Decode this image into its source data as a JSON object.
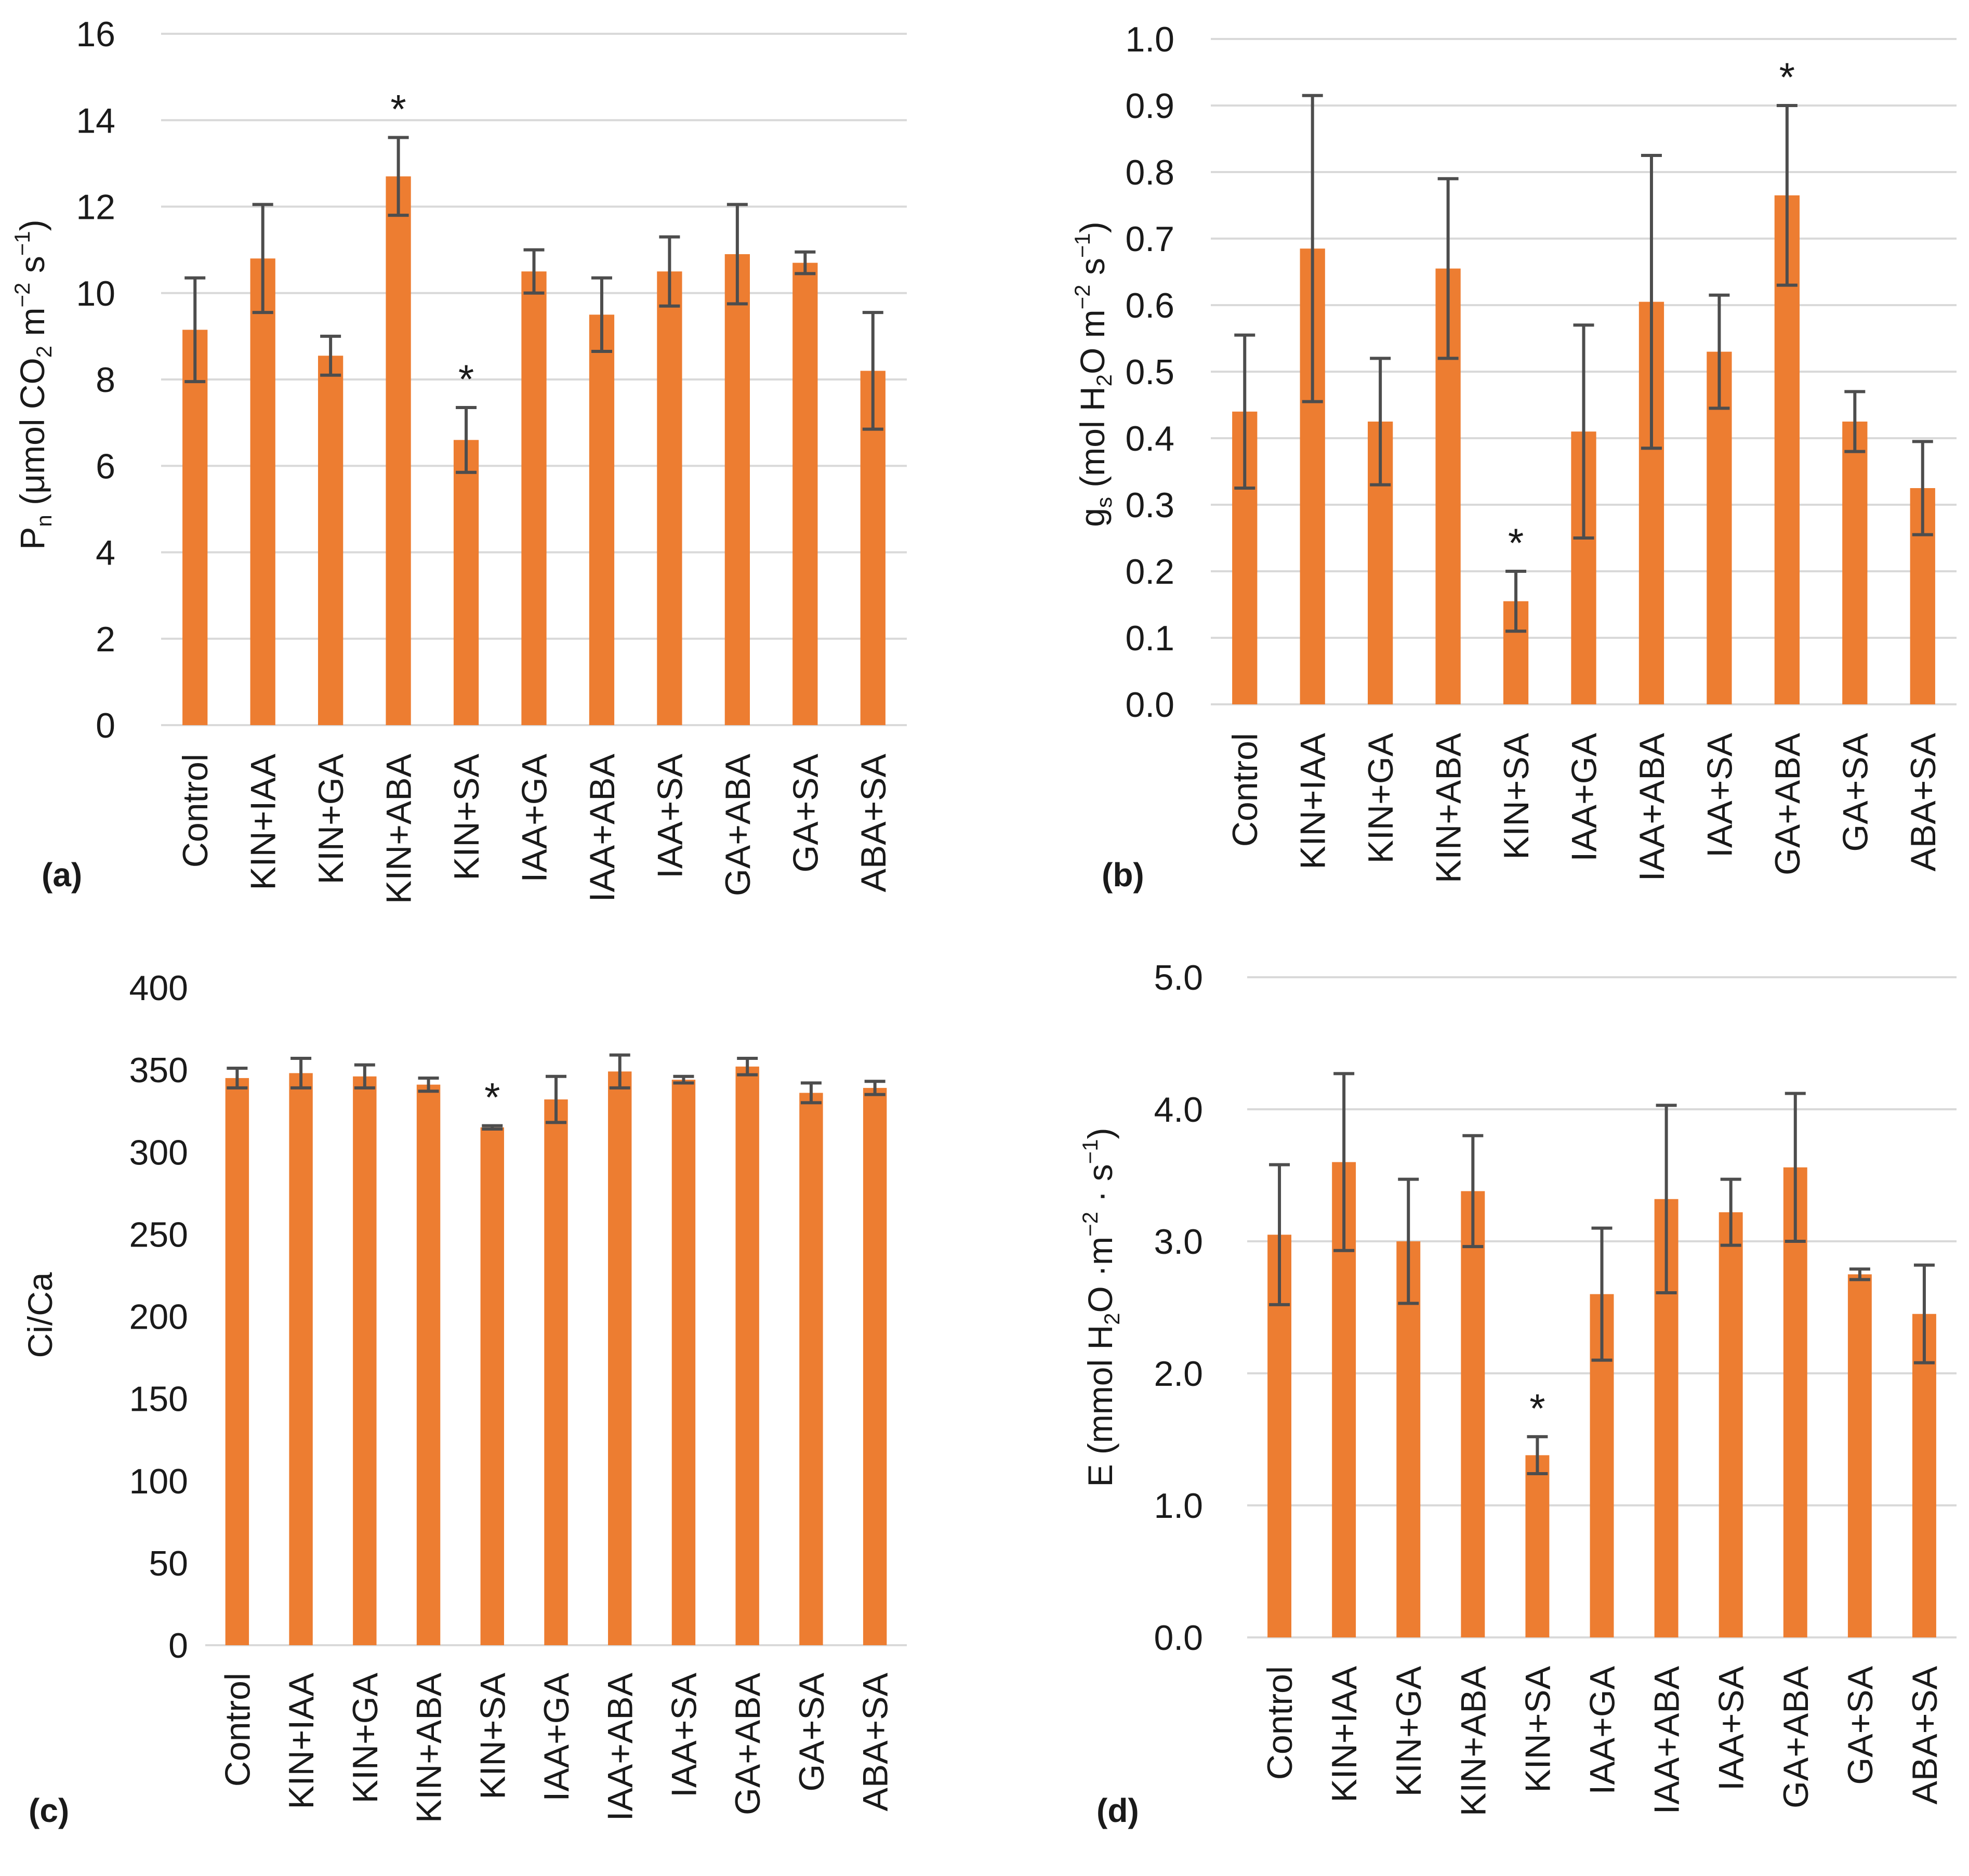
{
  "chart_data": [
    {
      "id": "a",
      "type": "bar",
      "panel_label": "(a)",
      "categories": [
        "Control",
        "KIN+IAA",
        "KIN+GA",
        "KIN+ABA",
        "KIN+SA",
        "IAA+GA",
        "IAA+ABA",
        "IAA+SA",
        "GA+ABA",
        "GA+SA",
        "ABA+SA"
      ],
      "values": [
        9.15,
        10.8,
        8.55,
        12.7,
        6.6,
        10.5,
        9.5,
        10.5,
        10.9,
        10.7,
        8.2
      ],
      "errors": [
        1.2,
        1.25,
        0.45,
        0.9,
        0.75,
        0.5,
        0.85,
        0.8,
        1.15,
        0.25,
        1.35
      ],
      "significance": [
        "",
        "",
        "",
        "*",
        "*",
        "",
        "",
        "",
        "",
        "",
        ""
      ],
      "ylim": [
        0,
        16
      ],
      "yticks": [
        "0",
        "2",
        "4",
        "6",
        "8",
        "10",
        "12",
        "14",
        "16"
      ],
      "ylabel": {
        "parts": [
          {
            "text": "P"
          },
          {
            "text": "n",
            "sub": true
          },
          {
            "text": " (μmol CO"
          },
          {
            "text": "2",
            "sub": true
          },
          {
            "text": " m"
          },
          {
            "text": "−2",
            "sup": true
          },
          {
            "text": " s"
          },
          {
            "text": "−1",
            "sup": true
          },
          {
            "text": ")"
          }
        ]
      },
      "grid": true
    },
    {
      "id": "b",
      "type": "bar",
      "panel_label": "(b)",
      "categories": [
        "Control",
        "KIN+IAA",
        "KIN+GA",
        "KIN+ABA",
        "KIN+SA",
        "IAA+GA",
        "IAA+ABA",
        "IAA+SA",
        "GA+ABA",
        "GA+SA",
        "ABA+SA"
      ],
      "values": [
        0.44,
        0.685,
        0.425,
        0.655,
        0.155,
        0.41,
        0.605,
        0.53,
        0.765,
        0.425,
        0.325
      ],
      "errors": [
        0.115,
        0.23,
        0.095,
        0.135,
        0.045,
        0.16,
        0.22,
        0.085,
        0.135,
        0.045,
        0.07
      ],
      "significance": [
        "",
        "",
        "",
        "",
        "*",
        "",
        "",
        "",
        "*",
        "",
        ""
      ],
      "ylim": [
        0,
        1.0
      ],
      "yticks": [
        "0.0",
        "0.1",
        "0.2",
        "0.3",
        "0.4",
        "0.5",
        "0.6",
        "0.7",
        "0.8",
        "0.9",
        "1.0"
      ],
      "ylabel": {
        "parts": [
          {
            "text": "g"
          },
          {
            "text": "s",
            "sub": true
          },
          {
            "text": " (mol H"
          },
          {
            "text": "2",
            "sub": true
          },
          {
            "text": "O m"
          },
          {
            "text": "−2",
            "sup": true
          },
          {
            "text": " s"
          },
          {
            "text": "−1",
            "sup": true
          },
          {
            "text": ")"
          }
        ]
      },
      "grid": true
    },
    {
      "id": "c",
      "type": "bar",
      "panel_label": "(c)",
      "categories": [
        "Control",
        "KIN+IAA",
        "KIN+GA",
        "KIN+ABA",
        "KIN+SA",
        "IAA+GA",
        "IAA+ABA",
        "IAA+SA",
        "GA+ABA",
        "GA+SA",
        "ABA+SA"
      ],
      "values": [
        345,
        348,
        346,
        341,
        315,
        332,
        349,
        344,
        352,
        336,
        339
      ],
      "errors": [
        6,
        9,
        7,
        4,
        1,
        14,
        10,
        2,
        5,
        6,
        4
      ],
      "significance": [
        "",
        "",
        "",
        "",
        "*",
        "",
        "",
        "",
        "",
        "",
        ""
      ],
      "ylim": [
        0,
        400
      ],
      "yticks": [
        "0",
        "50",
        "100",
        "150",
        "200",
        "250",
        "300",
        "350",
        "400"
      ],
      "ylabel": {
        "parts": [
          {
            "text": "Ci/Ca"
          }
        ]
      },
      "grid": false
    },
    {
      "id": "d",
      "type": "bar",
      "panel_label": "(d)",
      "categories": [
        "Control",
        "KIN+IAA",
        "KIN+GA",
        "KIN+ABA",
        "KIN+SA",
        "IAA+GA",
        "IAA+ABA",
        "IAA+SA",
        "GA+ABA",
        "GA+SA",
        "ABA+SA"
      ],
      "values": [
        3.05,
        3.6,
        3.0,
        3.38,
        1.38,
        2.6,
        3.32,
        3.22,
        3.56,
        2.75,
        2.45
      ],
      "errors": [
        0.53,
        0.67,
        0.47,
        0.42,
        0.14,
        0.5,
        0.71,
        0.25,
        0.56,
        0.04,
        0.37
      ],
      "significance": [
        "",
        "",
        "",
        "",
        "*",
        "",
        "",
        "",
        "",
        "",
        ""
      ],
      "ylim": [
        0,
        5.0
      ],
      "yticks": [
        "0.0",
        "1.0",
        "2.0",
        "3.0",
        "4.0",
        "5.0"
      ],
      "ylabel": {
        "parts": [
          {
            "text": "E (mmol H"
          },
          {
            "text": "2",
            "sub": true
          },
          {
            "text": "O ·m"
          },
          {
            "text": "−2",
            "sup": true
          },
          {
            "text": " · s"
          },
          {
            "text": "−1",
            "sup": true
          },
          {
            "text": ")"
          }
        ]
      },
      "grid": true
    }
  ],
  "colors": {
    "bar": "#ed7d31",
    "error": "#4d4d4d",
    "grid": "#d9d9d9"
  }
}
